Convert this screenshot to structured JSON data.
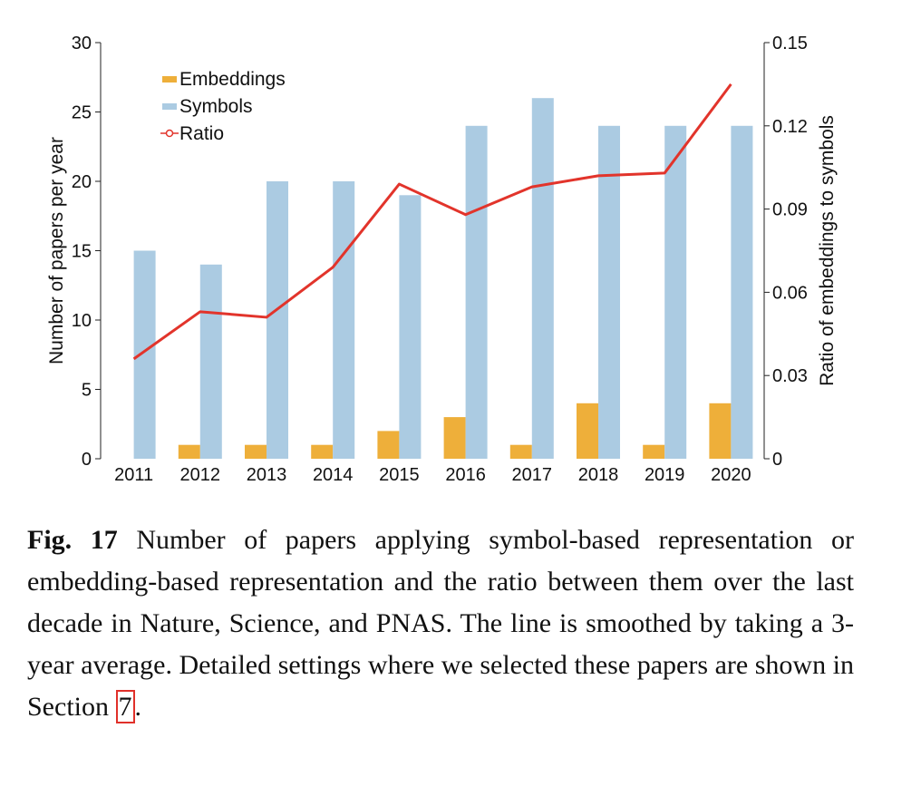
{
  "chart_data": {
    "type": "bar",
    "categories": [
      "2011",
      "2012",
      "2013",
      "2014",
      "2015",
      "2016",
      "2017",
      "2018",
      "2019",
      "2020"
    ],
    "series": [
      {
        "name": "Embeddings",
        "kind": "bar",
        "axis": "left",
        "color": "#eeaf3a",
        "values": [
          0,
          1,
          1,
          1,
          2,
          3,
          1,
          4,
          1,
          4
        ]
      },
      {
        "name": "Symbols",
        "kind": "bar",
        "axis": "left",
        "color": "#abcbe2",
        "values": [
          15,
          14,
          20,
          20,
          19,
          24,
          26,
          24,
          24,
          24
        ]
      },
      {
        "name": "Ratio",
        "kind": "line",
        "axis": "right",
        "color": "#e2342b",
        "values": [
          0.036,
          0.053,
          0.051,
          0.069,
          0.099,
          0.088,
          0.098,
          0.102,
          0.103,
          0.135
        ]
      }
    ],
    "ylabel": "Number of papers per year",
    "y2label": "Ratio of embeddings to symbols",
    "ylim": [
      0,
      30
    ],
    "y2lim": [
      0,
      0.15
    ],
    "yticks": [
      "0",
      "5",
      "10",
      "15",
      "20",
      "25",
      "30"
    ],
    "y2ticks": [
      "0",
      "0.03",
      "0.06",
      "0.09",
      "0.12",
      "0.15"
    ],
    "legend_position": "top-left",
    "grid": false
  },
  "caption": {
    "label": "Fig.   17",
    "text": " Number of papers applying symbol-based representation or embedding-based representation and the ratio between them over the last decade in Nature, Science, and PNAS. The line is smoothed by taking a 3-year average. Detailed settings where we selected these papers are shown in Section ",
    "section_ref": "7",
    "end": "."
  }
}
